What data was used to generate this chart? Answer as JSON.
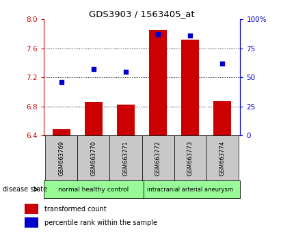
{
  "title": "GDS3903 / 1563405_at",
  "samples": [
    "GSM663769",
    "GSM663770",
    "GSM663771",
    "GSM663772",
    "GSM663773",
    "GSM663774"
  ],
  "transformed_counts": [
    6.49,
    6.86,
    6.83,
    7.85,
    7.72,
    6.87
  ],
  "percentile_ranks": [
    46,
    57,
    55,
    87,
    86,
    62
  ],
  "ylim_left": [
    6.4,
    8.0
  ],
  "ylim_right": [
    0,
    100
  ],
  "yticks_left": [
    6.4,
    6.8,
    7.2,
    7.6,
    8.0
  ],
  "yticks_right": [
    0,
    25,
    50,
    75,
    100
  ],
  "group1_label": "normal healthy control",
  "group2_label": "intracranial arterial aneurysm",
  "group_color": "#98FB98",
  "bar_color": "#CC0000",
  "marker_color": "#0000CC",
  "bar_bottom": 6.4,
  "background_label": "#C8C8C8",
  "left_axis_color": "#CC0000",
  "right_axis_color": "#0000CC",
  "legend1": "transformed count",
  "legend2": "percentile rank within the sample",
  "disease_state_label": "disease state"
}
